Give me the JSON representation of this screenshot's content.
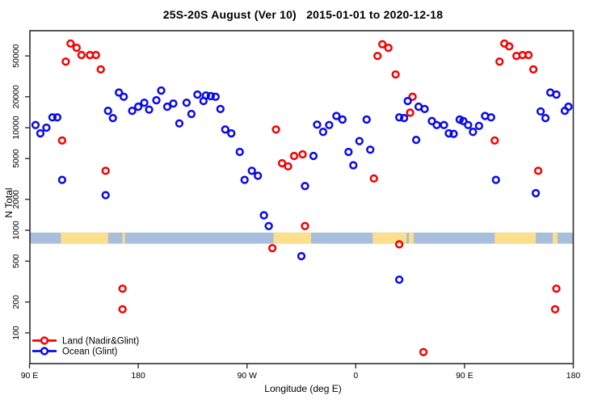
{
  "figure": {
    "title": "25S-20S August (Ver 10)   2015-01-01 to 2020-12-18",
    "x_label": "Longitude (deg E)",
    "y_label": "N Total"
  },
  "legend": {
    "items": [
      {
        "label": "Land (Nadir&Glint)",
        "color": "#f50000"
      },
      {
        "label": "Ocean (Glint)",
        "color": "#0909ee"
      }
    ]
  },
  "chart_data": {
    "type": "scatter",
    "title": "25S-20S August (Ver 10)   2015-01-01 to 2020-12-18",
    "xlabel": "Longitude (deg E)",
    "ylabel": "N Total",
    "y_scale": "log",
    "ylim": [
      50,
      92000
    ],
    "grid": false,
    "legend_position": "bottom-left",
    "x_axis": {
      "note": "longitude axis spans 450 deg, wrapping: 90E -> 180 -> 90W -> 0 -> 90E -> 180",
      "unwrapped_range": [
        90,
        540
      ],
      "ticks": [
        {
          "lon": 90,
          "label": "90 E"
        },
        {
          "lon": 180,
          "label": "180"
        },
        {
          "lon": 270,
          "label": "90 W"
        },
        {
          "lon": 360,
          "label": "0"
        },
        {
          "lon": 450,
          "label": "90 E"
        },
        {
          "lon": 540,
          "label": "180"
        }
      ]
    },
    "y_ticks": [
      100,
      200,
      500,
      1000,
      2000,
      5000,
      10000,
      20000,
      50000
    ],
    "map_band": {
      "description": "horizontal land/ocean strip drawn across the plot near N=1000",
      "value_top": 950,
      "value_bottom": 740,
      "ocean_color": "#a9bedc",
      "land_color": "#fcdf8c",
      "land_patches_lon": [
        [
          116,
          155
        ],
        [
          167,
          169
        ],
        [
          292,
          323
        ],
        [
          374,
          402
        ],
        [
          404,
          408
        ],
        [
          475,
          509
        ],
        [
          523,
          527
        ]
      ]
    },
    "series": [
      {
        "name": "Land (Nadir&Glint)",
        "color": "#f50000",
        "points": [
          [
            124,
            66000
          ],
          [
            129,
            60000
          ],
          [
            133,
            51000
          ],
          [
            140,
            51000
          ],
          [
            145,
            51000
          ],
          [
            120,
            44000
          ],
          [
            149,
            37000
          ],
          [
            117,
            7500
          ],
          [
            153,
            3800
          ],
          [
            167,
            270
          ],
          [
            167,
            170
          ],
          [
            294,
            9600
          ],
          [
            299,
            4500
          ],
          [
            304,
            4200
          ],
          [
            309,
            5300
          ],
          [
            316,
            5500
          ],
          [
            382,
            65000
          ],
          [
            387,
            60000
          ],
          [
            378,
            50000
          ],
          [
            393,
            33000
          ],
          [
            407,
            20000
          ],
          [
            405,
            14000
          ],
          [
            375,
            3200
          ],
          [
            483,
            66000
          ],
          [
            487,
            62000
          ],
          [
            493,
            50000
          ],
          [
            498,
            51000
          ],
          [
            503,
            51000
          ],
          [
            479,
            44000
          ],
          [
            507,
            37000
          ],
          [
            475,
            7500
          ],
          [
            511,
            3800
          ],
          [
            318,
            1100
          ],
          [
            291,
            670
          ],
          [
            396,
            730
          ],
          [
            526,
            270
          ],
          [
            525,
            170
          ],
          [
            416,
            65
          ]
        ]
      },
      {
        "name": "Ocean (Glint)",
        "color": "#0909ee",
        "points": [
          [
            95,
            10600
          ],
          [
            99,
            8800
          ],
          [
            104,
            10000
          ],
          [
            109,
            12600
          ],
          [
            113,
            12600
          ],
          [
            117,
            3100
          ],
          [
            153,
            2200
          ],
          [
            155,
            14600
          ],
          [
            159,
            12400
          ],
          [
            164,
            22000
          ],
          [
            168,
            20000
          ],
          [
            175,
            14600
          ],
          [
            180,
            16000
          ],
          [
            185,
            17500
          ],
          [
            189,
            15000
          ],
          [
            195,
            18500
          ],
          [
            199,
            23000
          ],
          [
            204,
            16000
          ],
          [
            209,
            17200
          ],
          [
            220,
            17500
          ],
          [
            224,
            13600
          ],
          [
            229,
            21000
          ],
          [
            234,
            18200
          ],
          [
            236,
            20600
          ],
          [
            240,
            20300
          ],
          [
            244,
            20000
          ],
          [
            248,
            15200
          ],
          [
            214,
            11000
          ],
          [
            252,
            9600
          ],
          [
            257,
            8800
          ],
          [
            264,
            5800
          ],
          [
            274,
            3800
          ],
          [
            279,
            3400
          ],
          [
            268,
            3100
          ],
          [
            328,
            10700
          ],
          [
            338,
            10600
          ],
          [
            344,
            13000
          ],
          [
            349,
            12000
          ],
          [
            333,
            9100
          ],
          [
            325,
            5300
          ],
          [
            354,
            5800
          ],
          [
            358,
            4300
          ],
          [
            363,
            7400
          ],
          [
            369,
            12000
          ],
          [
            372,
            6100
          ],
          [
            318,
            2700
          ],
          [
            396,
            12600
          ],
          [
            400,
            12400
          ],
          [
            403,
            18200
          ],
          [
            412,
            16000
          ],
          [
            417,
            15200
          ],
          [
            423,
            11600
          ],
          [
            427,
            10600
          ],
          [
            410,
            7600
          ],
          [
            433,
            10600
          ],
          [
            446,
            12000
          ],
          [
            449,
            11600
          ],
          [
            453,
            10600
          ],
          [
            437,
            8800
          ],
          [
            441,
            8700
          ],
          [
            457,
            9100
          ],
          [
            462,
            10400
          ],
          [
            467,
            13000
          ],
          [
            472,
            12600
          ],
          [
            521,
            22000
          ],
          [
            526,
            21000
          ],
          [
            536,
            16000
          ],
          [
            533,
            14600
          ],
          [
            513,
            14400
          ],
          [
            517,
            12400
          ],
          [
            476,
            3100
          ],
          [
            509,
            2300
          ],
          [
            284,
            1400
          ],
          [
            288,
            1100
          ],
          [
            315,
            560
          ],
          [
            396,
            330
          ]
        ]
      }
    ]
  }
}
